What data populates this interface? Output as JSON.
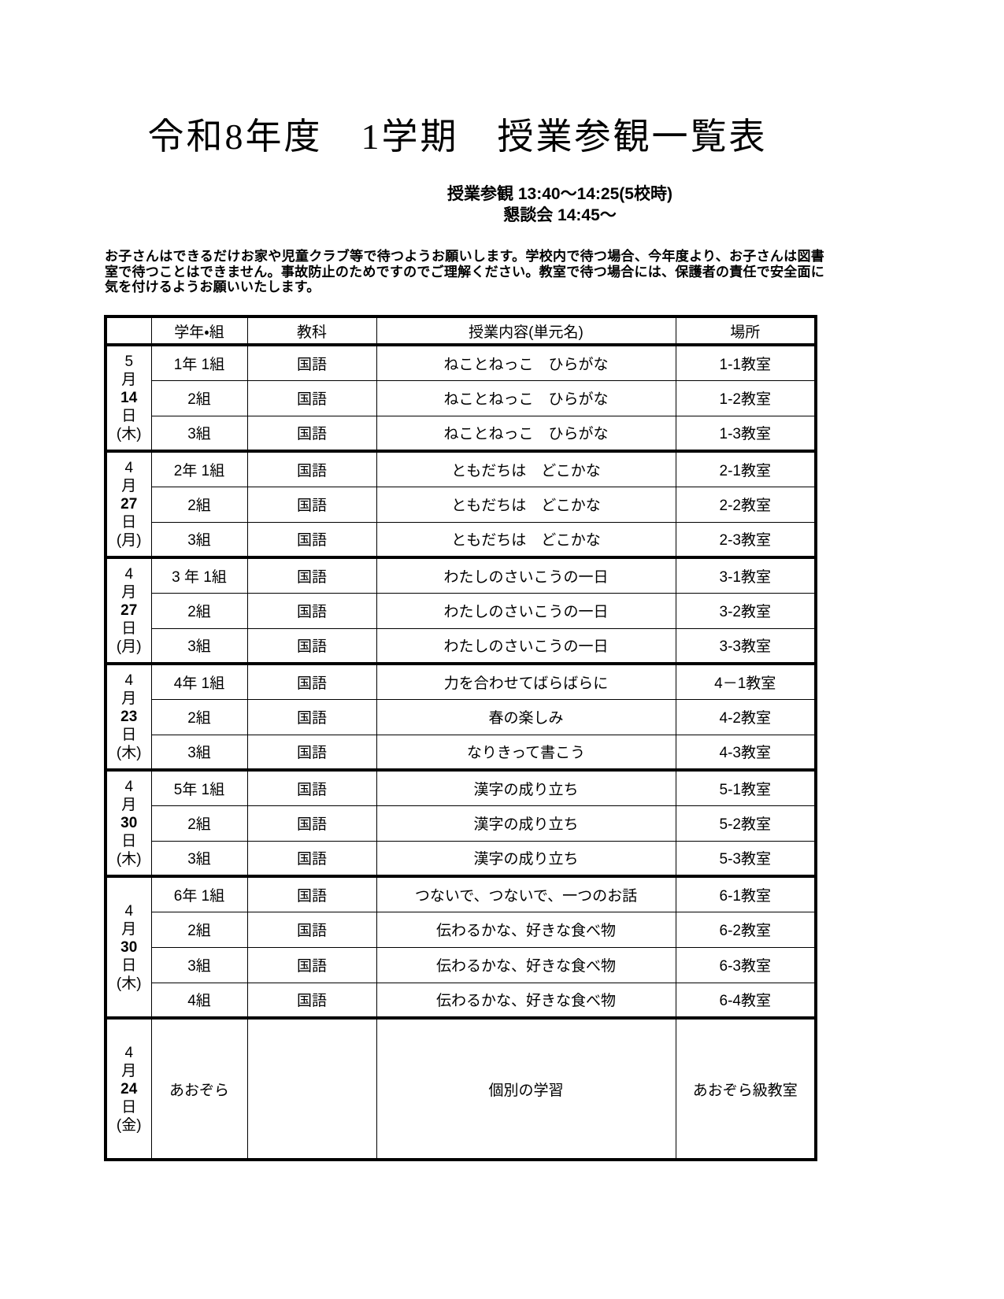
{
  "page": {
    "title": "令和8年度　1学期　授業参観一覧表",
    "schedule_note_1": "授業参観 13:40～14:25(5校時)",
    "schedule_note_2": "懇談会 14:45～",
    "notice": "お子さんはできるだけお家や児童クラブ等で待つようお願いします。学校内で待つ場合、今年度より、お子さんは図書室で待つことはできません。事故防止のためですのでご理解ください。教室で待つ場合には、保護者の責任で安全面に気を付けるようお願いいたします。"
  },
  "table": {
    "headers": [
      "",
      "学年・組",
      "教科",
      "授業内容(単元名)",
      "場所"
    ],
    "date_units": {
      "month": "月",
      "day": "日"
    },
    "groups": [
      {
        "date": {
          "month": "5",
          "day": "14",
          "weekday": "(木)"
        },
        "rows": [
          {
            "class": "1年 1組",
            "subject": "国語",
            "content": "ねことねっこ　ひらがな",
            "place": "1-1教室"
          },
          {
            "class": "2組",
            "subject": "国語",
            "content": "ねことねっこ　ひらがな",
            "place": "1-2教室"
          },
          {
            "class": "3組",
            "subject": "国語",
            "content": "ねことねっこ　ひらがな",
            "place": "1-3教室"
          }
        ]
      },
      {
        "date": {
          "month": "4",
          "day": "27",
          "weekday": "(月)"
        },
        "rows": [
          {
            "class": "2年 1組",
            "subject": "国語",
            "content": "ともだちは　どこかな",
            "place": "2-1教室"
          },
          {
            "class": "2組",
            "subject": "国語",
            "content": "ともだちは　どこかな",
            "place": "2-2教室"
          },
          {
            "class": "3組",
            "subject": "国語",
            "content": "ともだちは　どこかな",
            "place": "2-3教室"
          }
        ]
      },
      {
        "date": {
          "month": "4",
          "day": "27",
          "weekday": "(月)"
        },
        "rows": [
          {
            "class": "3 年 1組",
            "subject": "国語",
            "content": "わたしのさいこうの一日",
            "place": "3-1教室"
          },
          {
            "class": "2組",
            "subject": "国語",
            "content": "わたしのさいこうの一日",
            "place": "3-2教室"
          },
          {
            "class": "3組",
            "subject": "国語",
            "content": "わたしのさいこうの一日",
            "place": "3-3教室"
          }
        ]
      },
      {
        "date": {
          "month": "4",
          "day": "23",
          "weekday": "(木)"
        },
        "rows": [
          {
            "class": "4年 1組",
            "subject": "国語",
            "content": "力を合わせてばらばらに",
            "place": "4－1教室"
          },
          {
            "class": "2組",
            "subject": "国語",
            "content": "春の楽しみ",
            "place": "4-2教室"
          },
          {
            "class": "3組",
            "subject": "国語",
            "content": "なりきって書こう",
            "place": "4-3教室"
          }
        ]
      },
      {
        "date": {
          "month": "4",
          "day": "30",
          "weekday": "(木)"
        },
        "rows": [
          {
            "class": "5年 1組",
            "subject": "国語",
            "content": "漢字の成り立ち",
            "place": "5-1教室"
          },
          {
            "class": "2組",
            "subject": "国語",
            "content": "漢字の成り立ち",
            "place": "5-2教室"
          },
          {
            "class": "3組",
            "subject": "国語",
            "content": "漢字の成り立ち",
            "place": "5-3教室"
          }
        ]
      },
      {
        "date": {
          "month": "4",
          "day": "30",
          "weekday": "(木)"
        },
        "rows": [
          {
            "class": "6年 1組",
            "subject": "国語",
            "content": "つないで、つないで、一つのお話",
            "place": "6-1教室"
          },
          {
            "class": "2組",
            "subject": "国語",
            "content": "伝わるかな、好きな食べ物",
            "place": "6-2教室"
          },
          {
            "class": "3組",
            "subject": "国語",
            "content": "伝わるかな、好きな食べ物",
            "place": "6-3教室"
          },
          {
            "class": "4組",
            "subject": "国語",
            "content": "伝わるかな、好きな食べ物",
            "place": "6-4教室"
          }
        ]
      },
      {
        "date": {
          "month": "4",
          "day": "24",
          "weekday": "(金)"
        },
        "rows": [
          {
            "class": "あおぞら",
            "subject": "",
            "content": "個別の学習",
            "place": "あおぞら級教室"
          }
        ]
      }
    ]
  }
}
